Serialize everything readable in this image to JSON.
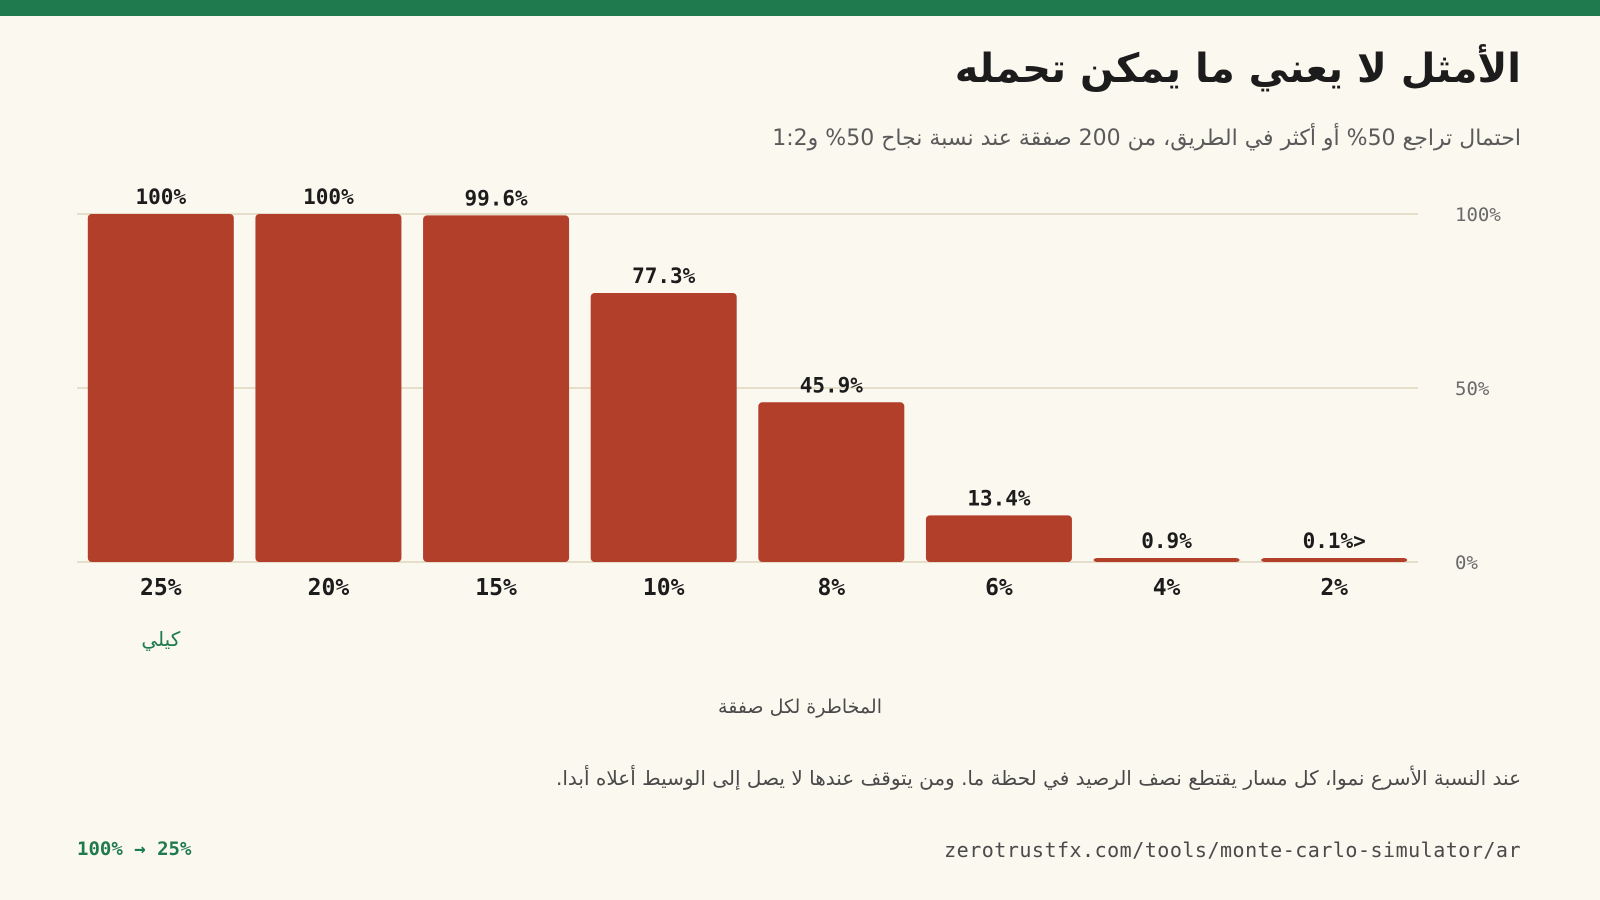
{
  "colors": {
    "accent": "#1f7a4d",
    "bar": "#b23f2a",
    "gridline": "#ddd6bd",
    "background": "#fbf8f0"
  },
  "header": {
    "title": "الأمثل لا يعني ما يمكن تحمله",
    "subtitle": "احتمال تراجع 50% أو أكثر في الطريق، من 200 صفقة عند نسبة نجاح 50% و1:2"
  },
  "chart_data": {
    "type": "bar",
    "title": "الأمثل لا يعني ما يمكن تحمله",
    "subtitle": "احتمال تراجع 50% أو أكثر في الطريق، من 200 صفقة عند نسبة نجاح 50% و1:2",
    "xlabel": "المخاطرة لكل صفقة",
    "ylabel": "",
    "categories": [
      "25%",
      "20%",
      "15%",
      "10%",
      "8%",
      "6%",
      "4%",
      "2%"
    ],
    "values": [
      100,
      100,
      99.6,
      77.3,
      45.9,
      13.4,
      0.9,
      0.1
    ],
    "data_labels": [
      "100%",
      "100%",
      "99.6%",
      "77.3%",
      "45.9%",
      "13.4%",
      "0.9%",
      "0.1%>"
    ],
    "y_ticks": [
      "100%",
      "50%",
      "0%"
    ],
    "ylim": [
      0,
      100
    ],
    "grid": true,
    "annotation": {
      "category": "25%",
      "text": "كيلي"
    }
  },
  "note": "عند النسبة الأسرع نموا، كل مسار يقتطع نصف الرصيد في لحظة ما. ومن يتوقف عندها لا يصل إلى الوسيط أعلاه أبدا.",
  "footer": {
    "range": "100% → 25%",
    "url": "zerotrustfx.com/tools/monte-carlo-simulator/ar"
  }
}
